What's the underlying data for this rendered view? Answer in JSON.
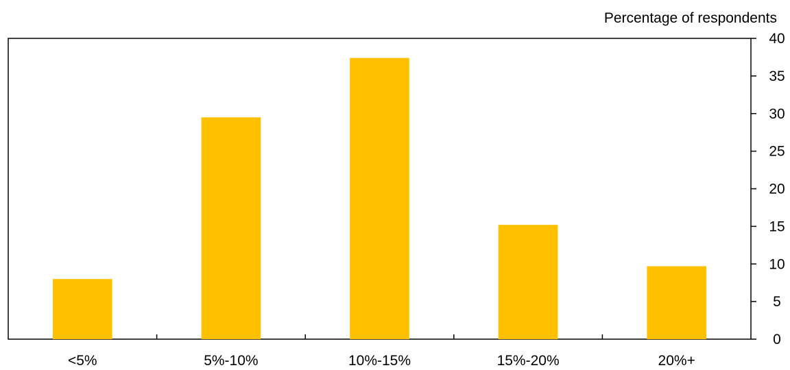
{
  "chart_data": {
    "type": "bar",
    "categories": [
      "<5%",
      "5%-10%",
      "10%-15%",
      "15%-20%",
      "20%+"
    ],
    "series": [
      {
        "values": [
          8.0,
          29.5,
          37.4,
          15.2,
          9.7
        ],
        "color": "#FFC000"
      }
    ],
    "ylabel": "Percentage of respondents",
    "ylim": [
      0,
      40
    ],
    "yticks": [
      0,
      5,
      10,
      15,
      20,
      25,
      30,
      35,
      40
    ],
    "y_axis_side": "right",
    "grid": false,
    "legend": "none"
  }
}
